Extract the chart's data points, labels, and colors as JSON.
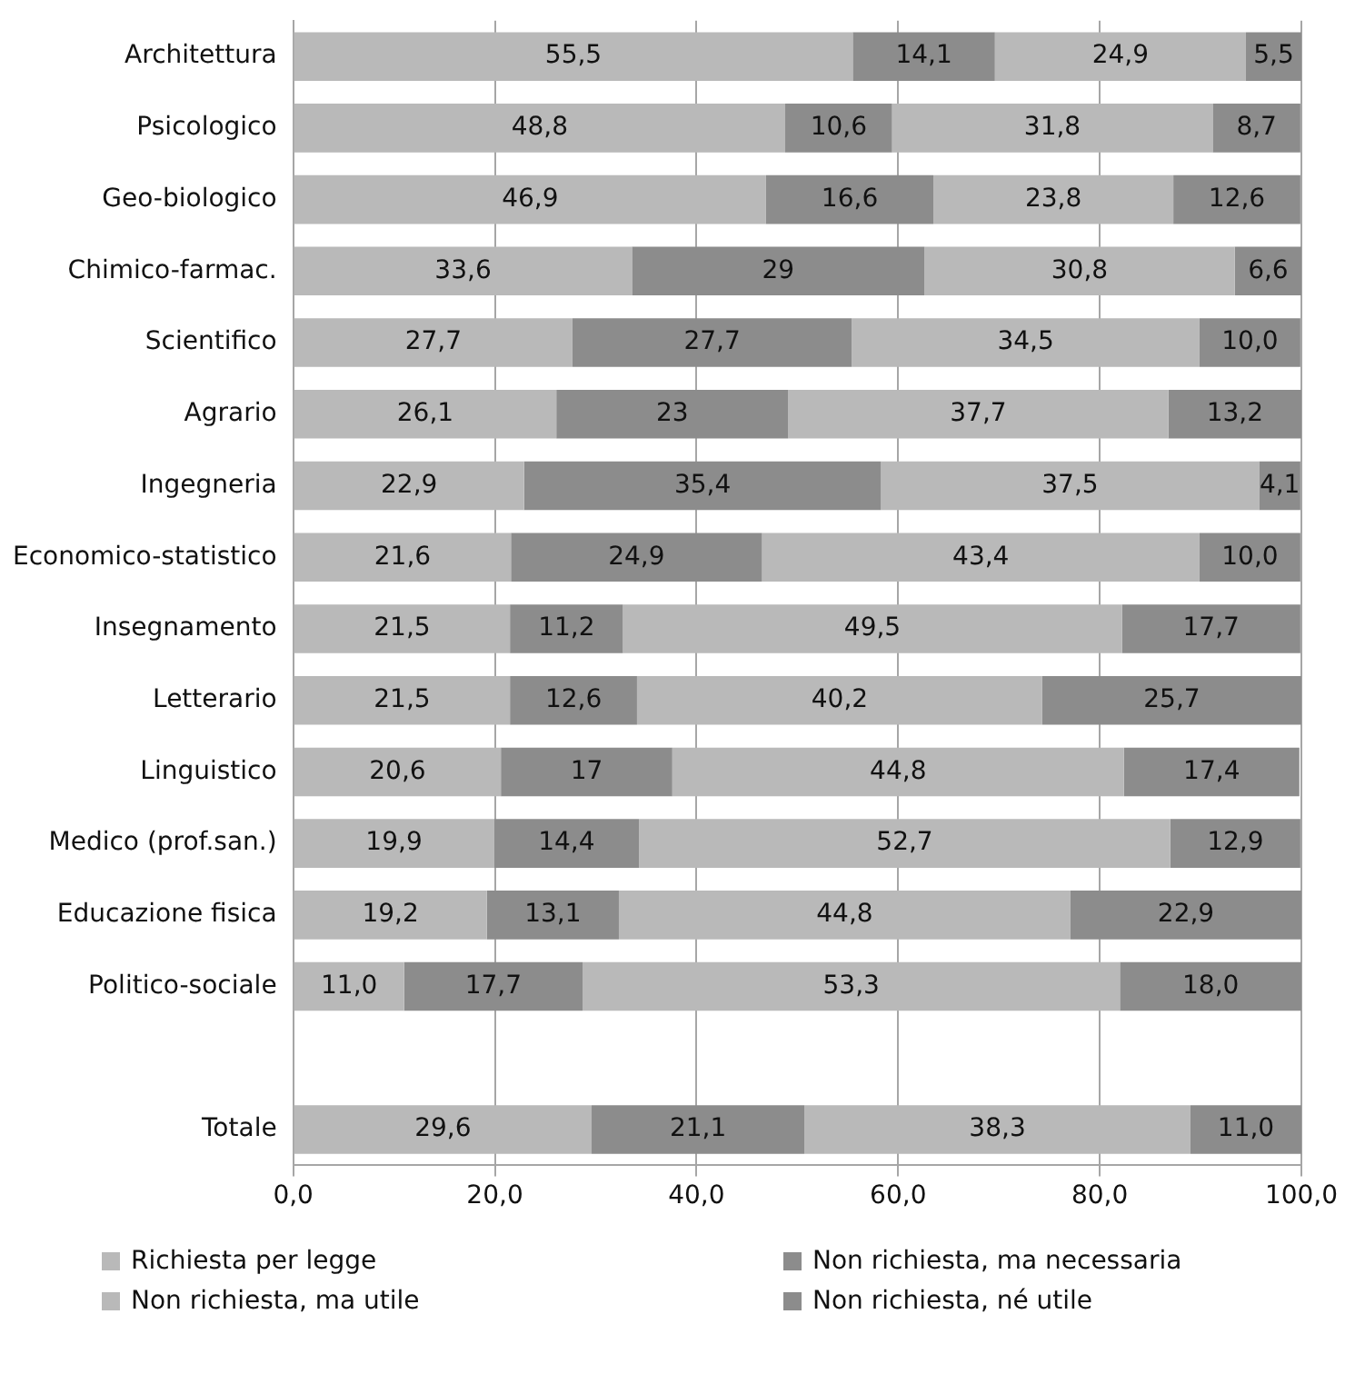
{
  "chart_data": {
    "type": "bar",
    "orientation": "horizontal",
    "stacked": true,
    "categories": [
      "Architettura",
      "Psicologico",
      "Geo-biologico",
      "Chimico-farmac.",
      "Scientifico",
      "Agrario",
      "Ingegneria",
      "Economico-statistico",
      "Insegnamento",
      "Letterario",
      "Linguistico",
      "Medico (prof.san.)",
      "Educazione fisica",
      "Politico-sociale",
      null,
      "Totale"
    ],
    "series": [
      {
        "name": "Richiesta per legge",
        "color": "#b9b9b9",
        "values": [
          55.5,
          48.8,
          46.9,
          33.6,
          27.7,
          26.1,
          22.9,
          21.6,
          21.5,
          21.5,
          20.6,
          19.9,
          19.2,
          11.0,
          null,
          29.6
        ],
        "value_labels": [
          "55,5",
          "48,8",
          "46,9",
          "33,6",
          "27,7",
          "26,1",
          "22,9",
          "21,6",
          "21,5",
          "21,5",
          "20,6",
          "19,9",
          "19,2",
          "11,0",
          null,
          "29,6"
        ]
      },
      {
        "name": "Non richiesta, ma necessaria",
        "color": "#8c8c8c",
        "values": [
          14.1,
          10.6,
          16.6,
          29,
          27.7,
          23,
          35.4,
          24.9,
          11.2,
          12.6,
          17,
          14.4,
          13.1,
          17.7,
          null,
          21.1
        ],
        "value_labels": [
          "14,1",
          "10,6",
          "16,6",
          "29",
          "27,7",
          "23",
          "35,4",
          "24,9",
          "11,2",
          "12,6",
          "17",
          "14,4",
          "13,1",
          "17,7",
          null,
          "21,1"
        ]
      },
      {
        "name": "Non richiesta, ma utile",
        "color": "#b9b9b9",
        "values": [
          24.9,
          31.8,
          23.8,
          30.8,
          34.5,
          37.7,
          37.5,
          43.4,
          49.5,
          40.2,
          44.8,
          52.7,
          44.8,
          53.3,
          null,
          38.3
        ],
        "value_labels": [
          "24,9",
          "31,8",
          "23,8",
          "30,8",
          "34,5",
          "37,7",
          "37,5",
          "43,4",
          "49,5",
          "40,2",
          "44,8",
          "52,7",
          "44,8",
          "53,3",
          null,
          "38,3"
        ]
      },
      {
        "name": "Non richiesta, né utile",
        "color": "#8c8c8c",
        "values": [
          5.5,
          8.7,
          12.6,
          6.6,
          10.0,
          13.2,
          4.1,
          10.0,
          17.7,
          25.7,
          17.4,
          12.9,
          22.9,
          18.0,
          null,
          11.0
        ],
        "value_labels": [
          "5,5",
          "8,7",
          "12,6",
          "6,6",
          "10,0",
          "13,2",
          "4,1",
          "10,0",
          "17,7",
          "25,7",
          "17,4",
          "12,9",
          "22,9",
          "18,0",
          null,
          "11,0"
        ]
      }
    ],
    "xlim": [
      0,
      100
    ],
    "xticks": [
      {
        "value": 0,
        "label": "0,0"
      },
      {
        "value": 20,
        "label": "20,0"
      },
      {
        "value": 40,
        "label": "40,0"
      },
      {
        "value": 60,
        "label": "60,0"
      },
      {
        "value": 80,
        "label": "80,0"
      },
      {
        "value": 100,
        "label": "100,0"
      }
    ],
    "grid": "x",
    "legend": "bottom"
  }
}
